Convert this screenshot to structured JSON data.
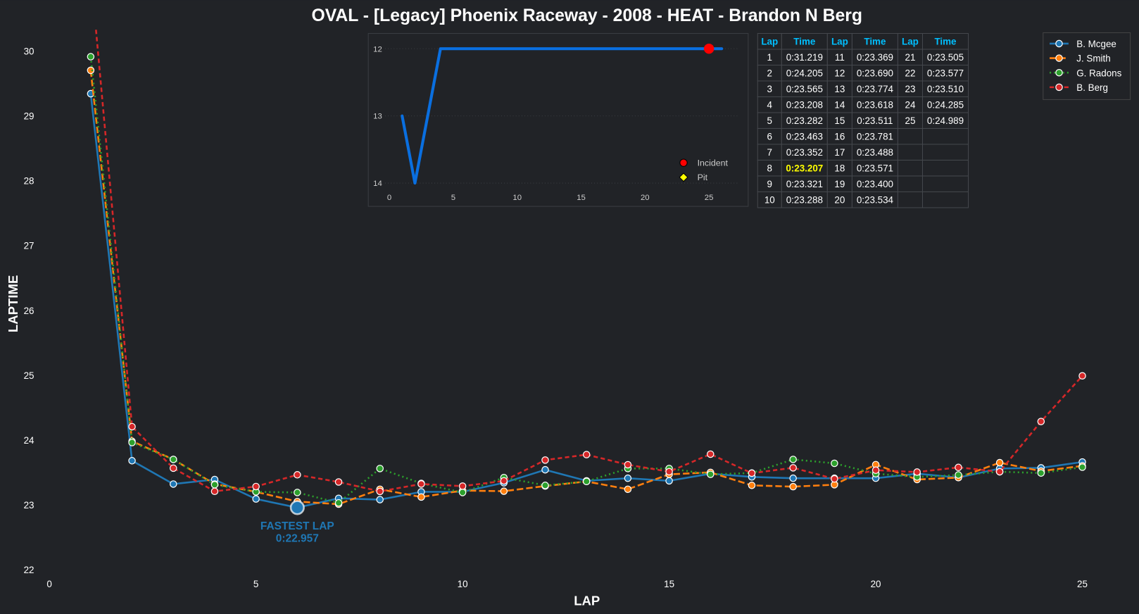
{
  "colors": {
    "background": "#212327",
    "blue": "#1f77b4",
    "orange": "#ff7f0e",
    "green": "#2ca02c",
    "red": "#d62728",
    "highlight": "#ffff00",
    "table_header": "#00bfff",
    "inset_line": "#0a6fe0"
  },
  "chart_data": [
    {
      "type": "line",
      "title": "OVAL - [Legacy] Phoenix Raceway - 2008 - HEAT - Brandon N Berg",
      "xlabel": "LAP",
      "ylabel": "LAPTIME",
      "xlim": [
        0,
        25.3
      ],
      "ylim": [
        22,
        30.35
      ],
      "xticks": [
        0,
        5,
        10,
        15,
        20,
        25
      ],
      "yticks": [
        22,
        23,
        24,
        25,
        26,
        27,
        28,
        29,
        30
      ],
      "grid": false,
      "legend": "top-right",
      "x": [
        1,
        2,
        3,
        4,
        5,
        6,
        7,
        8,
        9,
        10,
        11,
        12,
        13,
        14,
        15,
        16,
        17,
        18,
        19,
        20,
        21,
        22,
        23,
        24,
        25
      ],
      "series": [
        {
          "name": "B. Mcgee",
          "color": "#1f77b4",
          "style": "solid",
          "values": [
            29.34,
            23.68,
            23.32,
            23.39,
            23.09,
            22.957,
            23.1,
            23.08,
            23.2,
            23.2,
            23.34,
            23.54,
            23.37,
            23.41,
            23.37,
            23.48,
            23.43,
            23.41,
            23.41,
            23.41,
            23.48,
            23.42,
            23.56,
            23.57,
            23.66
          ]
        },
        {
          "name": "J. Smith",
          "color": "#ff7f0e",
          "style": "dashed",
          "values": [
            29.7,
            23.98,
            23.7,
            23.32,
            23.2,
            23.05,
            23.01,
            23.24,
            23.12,
            23.22,
            23.21,
            23.29,
            23.36,
            23.24,
            23.47,
            23.5,
            23.3,
            23.28,
            23.31,
            23.62,
            23.39,
            23.42,
            23.65,
            23.52,
            23.6
          ]
        },
        {
          "name": "G. Radons",
          "color": "#2ca02c",
          "style": "dotted",
          "values": [
            29.91,
            23.96,
            23.7,
            23.31,
            23.2,
            23.19,
            23.03,
            23.56,
            23.33,
            23.19,
            23.42,
            23.3,
            23.36,
            23.56,
            23.56,
            23.47,
            23.49,
            23.7,
            23.64,
            23.48,
            23.43,
            23.46,
            23.51,
            23.49,
            23.58
          ]
        },
        {
          "name": "B. Berg",
          "color": "#d62728",
          "style": "dashed-short",
          "values": [
            31.219,
            24.205,
            23.565,
            23.208,
            23.282,
            23.463,
            23.352,
            23.207,
            23.321,
            23.288,
            23.369,
            23.69,
            23.774,
            23.618,
            23.511,
            23.781,
            23.488,
            23.571,
            23.4,
            23.534,
            23.505,
            23.577,
            23.51,
            24.285,
            24.989
          ]
        }
      ],
      "annotation": {
        "label": "FASTEST LAP",
        "value": "0:22.957",
        "lap": 6,
        "time": 22.957
      }
    },
    {
      "type": "line",
      "xlim": [
        0,
        27
      ],
      "ylim": [
        14,
        12
      ],
      "inverted_y": true,
      "xticks": [
        0,
        5,
        10,
        15,
        20,
        25
      ],
      "yticks": [
        12,
        13,
        14
      ],
      "grid": true,
      "legend": "bottom-right",
      "x": [
        1,
        2,
        3,
        4,
        5,
        6,
        7,
        8,
        9,
        10,
        11,
        12,
        13,
        14,
        15,
        16,
        17,
        18,
        19,
        20,
        21,
        22,
        23,
        24,
        25,
        26
      ],
      "values": [
        13,
        14,
        13,
        12,
        12,
        12,
        12,
        12,
        12,
        12,
        12,
        12,
        12,
        12,
        12,
        12,
        12,
        12,
        12,
        12,
        12,
        12,
        12,
        12,
        12,
        12
      ],
      "markers": {
        "incident": [
          {
            "lap": 25,
            "position": 12
          }
        ],
        "pit": []
      },
      "legend_entries": [
        {
          "label": "Incident",
          "color": "#ff0000",
          "shape": "circle"
        },
        {
          "label": "Pit",
          "color": "#ffff00",
          "shape": "diamond"
        }
      ]
    }
  ],
  "lap_table": {
    "headers": [
      "Lap",
      "Time",
      "Lap",
      "Time",
      "Lap",
      "Time"
    ],
    "fastest_lap": 8,
    "rows": [
      [
        "1",
        "0:31.219",
        "11",
        "0:23.369",
        "21",
        "0:23.505"
      ],
      [
        "2",
        "0:24.205",
        "12",
        "0:23.690",
        "22",
        "0:23.577"
      ],
      [
        "3",
        "0:23.565",
        "13",
        "0:23.774",
        "23",
        "0:23.510"
      ],
      [
        "4",
        "0:23.208",
        "14",
        "0:23.618",
        "24",
        "0:24.285"
      ],
      [
        "5",
        "0:23.282",
        "15",
        "0:23.511",
        "25",
        "0:24.989"
      ],
      [
        "6",
        "0:23.463",
        "16",
        "0:23.781",
        "",
        ""
      ],
      [
        "7",
        "0:23.352",
        "17",
        "0:23.488",
        "",
        ""
      ],
      [
        "8",
        "0:23.207",
        "18",
        "0:23.571",
        "",
        ""
      ],
      [
        "9",
        "0:23.321",
        "19",
        "0:23.400",
        "",
        ""
      ],
      [
        "10",
        "0:23.288",
        "20",
        "0:23.534",
        "",
        ""
      ]
    ]
  }
}
